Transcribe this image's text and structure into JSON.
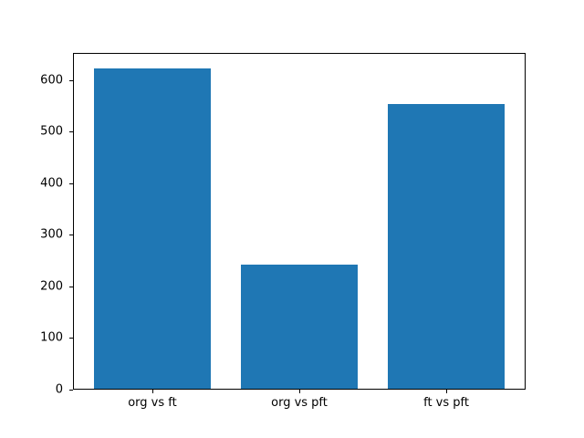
{
  "chart_data": {
    "type": "bar",
    "categories": [
      "org vs ft",
      "org vs pft",
      "ft vs pft"
    ],
    "values": [
      622,
      240,
      553
    ],
    "title": "",
    "xlabel": "",
    "ylabel": "",
    "ylim": [
      0,
      653
    ],
    "yticks": [
      0,
      100,
      200,
      300,
      400,
      500,
      600
    ],
    "bar_color": "#1f77b4",
    "grid": false,
    "legend_position": "none",
    "background_color": "#ffffff",
    "axis_color": "#000000"
  }
}
